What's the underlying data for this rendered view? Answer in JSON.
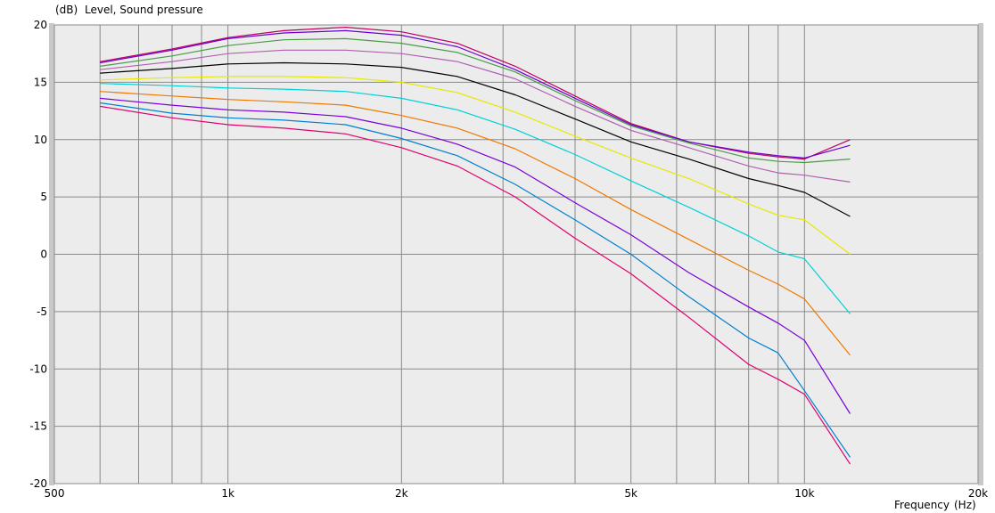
{
  "chart_data": {
    "type": "line",
    "title": "",
    "ylabel_unit": "(dB)",
    "ylabel": "Level, Sound pressure",
    "xlabel": "Frequency",
    "xlabel_unit": "(Hz)",
    "x_scale": "log",
    "xlim": [
      500,
      20000
    ],
    "ylim": [
      -20,
      20
    ],
    "grid": true,
    "legend": "none",
    "y_ticks": [
      20,
      15,
      10,
      5,
      0,
      -5,
      -10,
      -15,
      -20
    ],
    "y_tick_labels": [
      "20",
      "15",
      "10",
      "5",
      "0",
      "-5",
      "-10",
      "-15",
      "-20"
    ],
    "x_tick_labels": [
      {
        "value": 500,
        "label": "500"
      },
      {
        "value": 1000,
        "label": "1k"
      },
      {
        "value": 2000,
        "label": "2k"
      },
      {
        "value": 5000,
        "label": "5k"
      },
      {
        "value": 10000,
        "label": "10k"
      },
      {
        "value": 20000,
        "label": "20k"
      }
    ],
    "x_gridlines": [
      500,
      600,
      700,
      800,
      900,
      1000,
      2000,
      3000,
      4000,
      5000,
      6000,
      7000,
      8000,
      9000,
      10000,
      20000
    ],
    "x": [
      600,
      800,
      1000,
      1250,
      1600,
      2000,
      2500,
      3150,
      4000,
      5000,
      6300,
      8000,
      9000,
      10000,
      12000
    ],
    "series": [
      {
        "color": "#c00060",
        "values": [
          16.8,
          17.9,
          18.9,
          19.5,
          19.8,
          19.4,
          18.4,
          16.4,
          13.8,
          11.4,
          9.8,
          8.8,
          8.5,
          8.3,
          10.0
        ]
      },
      {
        "color": "#6a00d0",
        "values": [
          16.7,
          17.8,
          18.8,
          19.3,
          19.5,
          19.1,
          18.1,
          16.1,
          13.6,
          11.3,
          9.8,
          8.9,
          8.6,
          8.4,
          9.5
        ]
      },
      {
        "color": "#4a9a4a",
        "values": [
          16.4,
          17.3,
          18.2,
          18.7,
          18.8,
          18.4,
          17.6,
          15.9,
          13.4,
          11.2,
          9.7,
          8.4,
          8.1,
          8.0,
          8.3
        ]
      },
      {
        "color": "#b060b0",
        "values": [
          16.1,
          16.8,
          17.5,
          17.8,
          17.8,
          17.5,
          16.8,
          15.3,
          12.9,
          10.8,
          9.3,
          7.7,
          7.1,
          6.9,
          6.3
        ]
      },
      {
        "color": "#000000",
        "values": [
          15.8,
          16.2,
          16.6,
          16.7,
          16.6,
          16.3,
          15.5,
          13.9,
          11.8,
          9.8,
          8.3,
          6.6,
          6.0,
          5.4,
          3.3
        ]
      },
      {
        "color": "#e8e800",
        "values": [
          15.2,
          15.4,
          15.5,
          15.5,
          15.4,
          15.0,
          14.1,
          12.4,
          10.3,
          8.4,
          6.6,
          4.4,
          3.4,
          3.0,
          0.0
        ]
      },
      {
        "color": "#00d0d8",
        "values": [
          14.9,
          14.7,
          14.5,
          14.4,
          14.2,
          13.6,
          12.6,
          10.9,
          8.7,
          6.4,
          4.1,
          1.6,
          0.2,
          -0.4,
          -5.2
        ]
      },
      {
        "color": "#f07800",
        "values": [
          14.2,
          13.8,
          13.5,
          13.3,
          13.0,
          12.1,
          11.0,
          9.2,
          6.6,
          3.9,
          1.3,
          -1.4,
          -2.6,
          -3.9,
          -8.8
        ]
      },
      {
        "color": "#7a00d8",
        "values": [
          13.6,
          13.0,
          12.6,
          12.4,
          12.0,
          11.0,
          9.6,
          7.6,
          4.5,
          1.7,
          -1.6,
          -4.6,
          -6.0,
          -7.5,
          -13.9
        ]
      },
      {
        "color": "#0080d0",
        "values": [
          13.2,
          12.3,
          11.9,
          11.7,
          11.3,
          10.1,
          8.6,
          6.1,
          3.0,
          0.0,
          -3.7,
          -7.3,
          -8.6,
          -11.9,
          -17.7
        ]
      },
      {
        "color": "#e00070",
        "values": [
          12.9,
          11.9,
          11.3,
          11.0,
          10.5,
          9.3,
          7.7,
          5.0,
          1.4,
          -1.7,
          -5.5,
          -9.6,
          -10.9,
          -12.2,
          -18.3
        ]
      }
    ]
  }
}
